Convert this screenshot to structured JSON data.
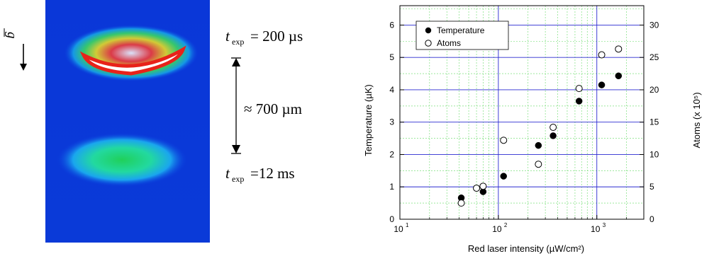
{
  "left_panel": {
    "gravity_label": "g",
    "label_top_var": "t",
    "label_top_sub": "exp",
    "label_top_eq": "= 200  µs",
    "label_mid": "≈ 700  µm",
    "label_bottom_var": "t",
    "label_bottom_sub": "exp",
    "label_bottom_eq": "=12  ms"
  },
  "chart_data": {
    "type": "scatter",
    "xlabel": "Red laser intensity (µW/cm²)",
    "ylabel_left": "Temperature (µK)",
    "ylabel_right": "Atoms (x 10⁵)",
    "x_scale": "log",
    "xlim": [
      10,
      3000
    ],
    "ylim_left": [
      0,
      6.6
    ],
    "ylim_right": [
      0,
      33
    ],
    "x_ticks": [
      10,
      100,
      1000
    ],
    "x_tick_labels": [
      [
        "10",
        "1"
      ],
      [
        "10",
        "2"
      ],
      [
        "10",
        "3"
      ]
    ],
    "yleft_ticks": [
      0,
      1,
      2,
      3,
      4,
      5,
      6
    ],
    "yright_ticks": [
      0,
      5,
      10,
      15,
      20,
      25,
      30
    ],
    "grid": true,
    "legend_position": "top-left",
    "series": [
      {
        "name": "Temperature",
        "marker": "filled-circle",
        "axis": "left",
        "x": [
          42,
          60,
          70,
          113,
          255,
          360,
          660,
          1120,
          1660
        ],
        "y": [
          0.66,
          0.96,
          0.85,
          1.33,
          2.28,
          2.58,
          3.65,
          4.15,
          4.43
        ]
      },
      {
        "name": "Atoms",
        "marker": "open-circle",
        "axis": "right",
        "x": [
          42,
          60,
          70,
          113,
          255,
          360,
          660,
          1120,
          1660
        ],
        "y": [
          2.5,
          4.8,
          5.1,
          12.2,
          8.5,
          14.2,
          20.2,
          25.4,
          26.3
        ]
      }
    ]
  }
}
